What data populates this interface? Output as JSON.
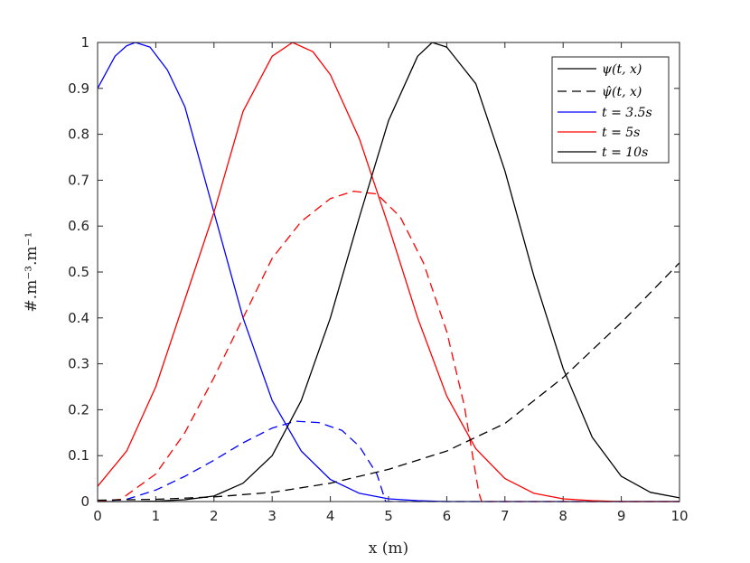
{
  "chart_data": {
    "type": "line",
    "xlabel": "x (m)",
    "ylabel": "#.m⁻³.m⁻¹",
    "xlim": [
      0,
      10
    ],
    "ylim": [
      0,
      1
    ],
    "x_ticks": [
      "0",
      "1",
      "2",
      "3",
      "4",
      "5",
      "6",
      "7",
      "8",
      "9",
      "10"
    ],
    "y_ticks": [
      "0",
      "0.1",
      "0.2",
      "0.3",
      "0.4",
      "0.5",
      "0.6",
      "0.7",
      "0.8",
      "0.9",
      "1"
    ],
    "grid": false,
    "legend_position": "top-right",
    "legend": [
      {
        "label": "ψ(t, x)",
        "style": "solid",
        "color": "#000000"
      },
      {
        "label": "ψ̂(t, x)",
        "style": "dashed",
        "color": "#000000"
      },
      {
        "label": "t = 3.5s",
        "style": "solid",
        "color": "#0000ff"
      },
      {
        "label": "t = 5s",
        "style": "solid",
        "color": "#ff0000"
      },
      {
        "label": "t = 10s",
        "style": "solid",
        "color": "#000000"
      }
    ],
    "series": [
      {
        "color": "#0000ff",
        "dash": false,
        "x": [
          0,
          0.3,
          0.5,
          0.65,
          0.9,
          1.2,
          1.5,
          2.0,
          2.5,
          3.0,
          3.5,
          4.0,
          4.5,
          5.0,
          5.5,
          6.0,
          6.5,
          7,
          8,
          9,
          10
        ],
        "y": [
          0.9,
          0.97,
          0.993,
          1.0,
          0.99,
          0.94,
          0.86,
          0.63,
          0.4,
          0.22,
          0.11,
          0.048,
          0.018,
          0.006,
          0.002,
          0,
          0,
          0,
          0,
          0,
          0
        ]
      },
      {
        "color": "#0000ff",
        "dash": true,
        "x": [
          0,
          0.5,
          1.0,
          1.5,
          2.0,
          2.5,
          3.0,
          3.4,
          3.8,
          4.2,
          4.5,
          4.8,
          4.95,
          5.1,
          6,
          7,
          8,
          9,
          10
        ],
        "y": [
          0,
          0.005,
          0.025,
          0.055,
          0.09,
          0.128,
          0.16,
          0.175,
          0.172,
          0.155,
          0.12,
          0.06,
          0.0,
          0,
          0,
          0,
          0,
          0,
          0
        ]
      },
      {
        "color": "#ff0000",
        "dash": false,
        "x": [
          0,
          0.5,
          1.0,
          1.5,
          2.0,
          2.5,
          3.0,
          3.35,
          3.7,
          4.0,
          4.5,
          5.0,
          5.5,
          6.0,
          6.5,
          7.0,
          7.5,
          8.0,
          8.5,
          9,
          10
        ],
        "y": [
          0.033,
          0.11,
          0.25,
          0.44,
          0.63,
          0.85,
          0.97,
          1.0,
          0.98,
          0.93,
          0.79,
          0.6,
          0.4,
          0.23,
          0.115,
          0.05,
          0.018,
          0.006,
          0.002,
          0,
          0
        ]
      },
      {
        "color": "#ff0000",
        "dash": true,
        "x": [
          0,
          0.4,
          1.0,
          1.5,
          2.0,
          2.5,
          3.0,
          3.5,
          4.0,
          4.4,
          4.8,
          5.2,
          5.6,
          6.0,
          6.3,
          6.55,
          6.6,
          7,
          8,
          9,
          10
        ],
        "y": [
          0,
          0.005,
          0.06,
          0.15,
          0.27,
          0.4,
          0.53,
          0.61,
          0.66,
          0.676,
          0.67,
          0.62,
          0.52,
          0.37,
          0.21,
          0.02,
          0,
          0,
          0,
          0,
          0
        ]
      },
      {
        "color": "#000000",
        "dash": false,
        "x": [
          0,
          0.5,
          1.0,
          1.5,
          2.0,
          2.5,
          3.0,
          3.5,
          4.0,
          4.5,
          5.0,
          5.5,
          5.75,
          6.0,
          6.5,
          7.0,
          7.5,
          8.0,
          8.5,
          9.0,
          9.5,
          10
        ],
        "y": [
          0,
          0,
          0.001,
          0.004,
          0.012,
          0.04,
          0.1,
          0.22,
          0.4,
          0.62,
          0.83,
          0.97,
          1.0,
          0.99,
          0.91,
          0.72,
          0.49,
          0.29,
          0.14,
          0.055,
          0.02,
          0.008
        ]
      },
      {
        "color": "#000000",
        "dash": true,
        "x": [
          0,
          1,
          2,
          3,
          4,
          5,
          6,
          7,
          8,
          9,
          10
        ],
        "y": [
          0.003,
          0.005,
          0.01,
          0.02,
          0.04,
          0.07,
          0.11,
          0.17,
          0.27,
          0.39,
          0.52
        ]
      }
    ]
  }
}
